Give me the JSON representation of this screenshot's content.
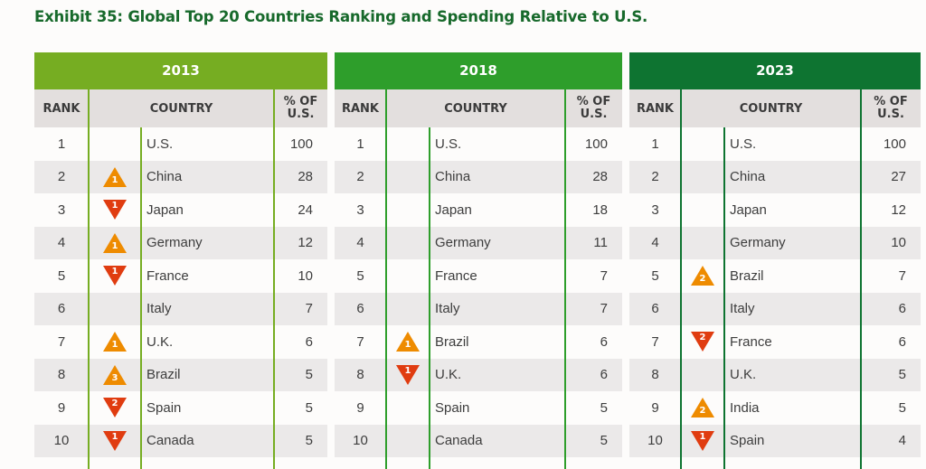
{
  "title": "Exhibit 35: Global Top 20 Countries Ranking and Spending Relative to U.S.",
  "colors": {
    "title": "#17692b",
    "up_arrow": "#ee8b00",
    "down_arrow": "#e03c10",
    "header_bg": "#e3dfde",
    "alt_row": "#ebe9e9"
  },
  "column_headers": {
    "rank": "RANK",
    "country": "COUNTRY",
    "pct_line1": "% OF",
    "pct_line2": "U.S."
  },
  "panels": [
    {
      "year": "2013",
      "color": "#76ad22",
      "line_color": "#76ad22",
      "rows": [
        {
          "rank": "1",
          "change": null,
          "change_value": "",
          "country": "U.S.",
          "pct": "100"
        },
        {
          "rank": "2",
          "change": "up",
          "change_value": "1",
          "country": "China",
          "pct": "28"
        },
        {
          "rank": "3",
          "change": "down",
          "change_value": "1",
          "country": "Japan",
          "pct": "24"
        },
        {
          "rank": "4",
          "change": "up",
          "change_value": "1",
          "country": "Germany",
          "pct": "12"
        },
        {
          "rank": "5",
          "change": "down",
          "change_value": "1",
          "country": "France",
          "pct": "10"
        },
        {
          "rank": "6",
          "change": null,
          "change_value": "",
          "country": "Italy",
          "pct": "7"
        },
        {
          "rank": "7",
          "change": "up",
          "change_value": "1",
          "country": "U.K.",
          "pct": "6"
        },
        {
          "rank": "8",
          "change": "up",
          "change_value": "3",
          "country": "Brazil",
          "pct": "5"
        },
        {
          "rank": "9",
          "change": "down",
          "change_value": "2",
          "country": "Spain",
          "pct": "5"
        },
        {
          "rank": "10",
          "change": "down",
          "change_value": "1",
          "country": "Canada",
          "pct": "5"
        }
      ]
    },
    {
      "year": "2018",
      "color": "#2e9e2b",
      "line_color": "#2e9e2b",
      "rows": [
        {
          "rank": "1",
          "change": null,
          "change_value": "",
          "country": "U.S.",
          "pct": "100"
        },
        {
          "rank": "2",
          "change": null,
          "change_value": "",
          "country": "China",
          "pct": "28"
        },
        {
          "rank": "3",
          "change": null,
          "change_value": "",
          "country": "Japan",
          "pct": "18"
        },
        {
          "rank": "4",
          "change": null,
          "change_value": "",
          "country": "Germany",
          "pct": "11"
        },
        {
          "rank": "5",
          "change": null,
          "change_value": "",
          "country": "France",
          "pct": "7"
        },
        {
          "rank": "6",
          "change": null,
          "change_value": "",
          "country": "Italy",
          "pct": "7"
        },
        {
          "rank": "7",
          "change": "up",
          "change_value": "1",
          "country": "Brazil",
          "pct": "6"
        },
        {
          "rank": "8",
          "change": "down",
          "change_value": "1",
          "country": "U.K.",
          "pct": "6"
        },
        {
          "rank": "9",
          "change": null,
          "change_value": "",
          "country": "Spain",
          "pct": "5"
        },
        {
          "rank": "10",
          "change": null,
          "change_value": "",
          "country": "Canada",
          "pct": "5"
        }
      ]
    },
    {
      "year": "2023",
      "color": "#0e7431",
      "line_color": "#0e7431",
      "rows": [
        {
          "rank": "1",
          "change": null,
          "change_value": "",
          "country": "U.S.",
          "pct": "100"
        },
        {
          "rank": "2",
          "change": null,
          "change_value": "",
          "country": "China",
          "pct": "27"
        },
        {
          "rank": "3",
          "change": null,
          "change_value": "",
          "country": "Japan",
          "pct": "12"
        },
        {
          "rank": "4",
          "change": null,
          "change_value": "",
          "country": "Germany",
          "pct": "10"
        },
        {
          "rank": "5",
          "change": "up",
          "change_value": "2",
          "country": "Brazil",
          "pct": "7"
        },
        {
          "rank": "6",
          "change": null,
          "change_value": "",
          "country": "Italy",
          "pct": "6"
        },
        {
          "rank": "7",
          "change": "down",
          "change_value": "2",
          "country": "France",
          "pct": "6"
        },
        {
          "rank": "8",
          "change": null,
          "change_value": "",
          "country": "U.K.",
          "pct": "5"
        },
        {
          "rank": "9",
          "change": "up",
          "change_value": "2",
          "country": "India",
          "pct": "5"
        },
        {
          "rank": "10",
          "change": "down",
          "change_value": "1",
          "country": "Spain",
          "pct": "4"
        }
      ]
    }
  ]
}
